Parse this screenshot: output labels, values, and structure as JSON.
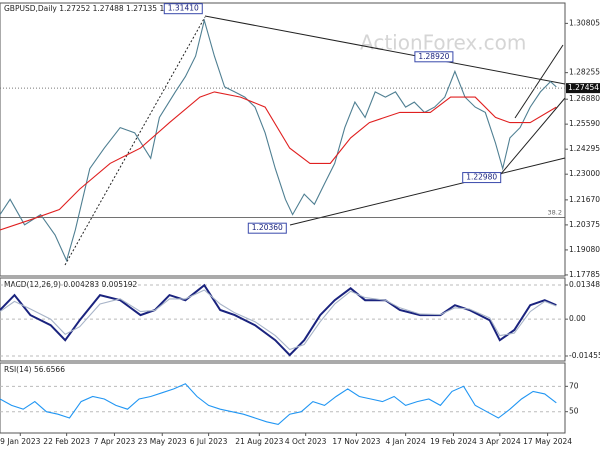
{
  "chart_data": [
    {
      "type": "line",
      "title": "GBPUSD,Daily  1.27252 1.27488 1.27135 1.27454",
      "watermark": "ActionForex.com",
      "xlim": [
        0,
        390
      ],
      "ylim": [
        1.1773,
        1.3186
      ],
      "yticks": [
        {
          "value": 1.30805,
          "label": "1.30805"
        },
        {
          "value": 1.28255,
          "label": "1.28255"
        },
        {
          "value": 1.2688,
          "label": "1.26880"
        },
        {
          "value": 1.2559,
          "label": "1.25590"
        },
        {
          "value": 1.24295,
          "label": "1.24295"
        },
        {
          "value": 1.23,
          "label": "1.23000"
        },
        {
          "value": 1.2167,
          "label": "1.21670"
        },
        {
          "value": 1.20375,
          "label": "1.20375"
        },
        {
          "value": 1.1908,
          "label": "1.19080"
        },
        {
          "value": 1.17785,
          "label": "1.17785"
        }
      ],
      "series": [
        {
          "name": "GBPUSD",
          "color": "#4f7f92",
          "x": [
            0,
            7,
            17,
            28,
            38,
            46,
            52,
            62,
            72,
            83,
            93,
            104,
            110,
            121,
            128,
            135,
            141,
            148,
            155,
            162,
            169,
            176,
            183,
            190,
            197,
            202,
            210,
            217,
            224,
            231,
            238,
            245,
            252,
            259,
            266,
            273,
            280,
            286,
            293,
            300,
            307,
            314,
            321,
            328,
            335,
            342,
            347,
            352,
            359,
            366,
            373,
            380,
            384
          ],
          "values": [
            1.2091,
            1.217,
            1.2038,
            1.2091,
            1.1985,
            1.1853,
            1.2011,
            1.2329,
            1.2435,
            1.2541,
            1.2514,
            1.2382,
            1.2594,
            1.2726,
            1.2805,
            1.2911,
            1.3096,
            1.2911,
            1.2752,
            1.2726,
            1.2699,
            1.2647,
            1.2514,
            1.2329,
            1.217,
            1.2091,
            1.2197,
            1.2144,
            1.225,
            1.2356,
            1.2541,
            1.2673,
            1.2594,
            1.2726,
            1.2699,
            1.2726,
            1.2647,
            1.2673,
            1.262,
            1.2647,
            1.2699,
            1.2832,
            1.2699,
            1.2647,
            1.262,
            1.2461,
            1.2329,
            1.2488,
            1.2541,
            1.2647,
            1.2726,
            1.2779,
            1.2752
          ]
        },
        {
          "name": "MA",
          "color": "#e02020",
          "x": [
            0,
            21,
            41,
            55,
            76,
            97,
            117,
            138,
            148,
            166,
            183,
            200,
            214,
            228,
            242,
            255,
            276,
            297,
            311,
            328,
            342,
            352,
            366,
            384
          ],
          "values": [
            1.2011,
            1.2064,
            1.2117,
            1.2223,
            1.2356,
            1.2435,
            1.2567,
            1.2699,
            1.2726,
            1.2699,
            1.2647,
            1.2435,
            1.2356,
            1.2356,
            1.2488,
            1.2567,
            1.262,
            1.262,
            1.2699,
            1.2699,
            1.2594,
            1.2567,
            1.2567,
            1.2647
          ]
        }
      ],
      "annotations": [
        {
          "label": "1.31410",
          "x": 141,
          "value": 1.3141
        },
        {
          "label": "1.28920",
          "x": 314,
          "value": 1.2892
        },
        {
          "label": "1.22980",
          "x": 347,
          "value": 1.2298
        },
        {
          "label": "1.20360",
          "x": 199,
          "value": 1.2036
        }
      ],
      "level": {
        "label": "38.2",
        "value": 1.2075
      },
      "current": {
        "label": "1.27454",
        "value": 1.27454
      }
    },
    {
      "type": "line",
      "title": "MACD(12,26,9) 0.004283 0.005192",
      "xlim": [
        0,
        390
      ],
      "ylim": [
        -0.016529,
        0.016253
      ],
      "yticks": [
        0.013489,
        {
          "value": 0,
          "label": "0.00"
        },
        -0.014554
      ],
      "series": [
        {
          "name": "MACD",
          "color": "#1a237e",
          "x": [
            0,
            10,
            21,
            35,
            45,
            55,
            69,
            83,
            97,
            107,
            117,
            128,
            141,
            152,
            162,
            176,
            190,
            200,
            210,
            221,
            231,
            242,
            252,
            266,
            276,
            290,
            304,
            314,
            324,
            338,
            345,
            355,
            366,
            376,
            384
          ],
          "values": [
            0.0036,
            0.0095,
            0.0016,
            -0.0024,
            -0.0083,
            -0.0004,
            0.0095,
            0.0075,
            0.0016,
            0.0036,
            0.0095,
            0.0075,
            0.0134,
            0.0036,
            0.0016,
            -0.0024,
            -0.0083,
            -0.0142,
            -0.0083,
            0.0016,
            0.0075,
            0.0122,
            0.0075,
            0.0075,
            0.0036,
            0.0016,
            0.0016,
            0.0055,
            0.0036,
            -0.0004,
            -0.0083,
            -0.0043,
            0.0055,
            0.0075,
            0.0055
          ]
        },
        {
          "name": "Signal",
          "color": "#a8b4c8",
          "x": [
            0,
            10,
            21,
            35,
            45,
            55,
            69,
            83,
            97,
            107,
            117,
            128,
            141,
            152,
            162,
            176,
            190,
            200,
            210,
            221,
            231,
            242,
            252,
            266,
            276,
            290,
            304,
            314,
            324,
            338,
            345,
            355,
            366,
            376,
            384
          ],
          "values": [
            0.003,
            0.007,
            0.004,
            0.0,
            -0.006,
            -0.003,
            0.006,
            0.008,
            0.003,
            0.0035,
            0.008,
            0.008,
            0.0115,
            0.006,
            0.0025,
            -0.001,
            -0.0065,
            -0.012,
            -0.01,
            -0.001,
            0.006,
            0.011,
            0.0085,
            0.0075,
            0.0045,
            0.002,
            0.0018,
            0.0045,
            0.004,
            0.0005,
            -0.0065,
            -0.0055,
            0.003,
            0.007,
            0.0052
          ]
        }
      ]
    },
    {
      "type": "line",
      "title": "RSI(14) 56.6566",
      "xlim": [
        0,
        390
      ],
      "ylim": [
        33.2,
        88.4
      ],
      "yticks": [
        70,
        50
      ],
      "xticks": [
        {
          "value": 14,
          "label": "9 Jan 2023"
        },
        {
          "value": 46,
          "label": "22 Feb 2023"
        },
        {
          "value": 79,
          "label": "7 Apr 2023"
        },
        {
          "value": 112,
          "label": "23 May 2023"
        },
        {
          "value": 144,
          "label": "6 Jul 2023"
        },
        {
          "value": 179,
          "label": "21 Aug 2023"
        },
        {
          "value": 211,
          "label": "4 Oct 2023"
        },
        {
          "value": 246,
          "label": "17 Nov 2023"
        },
        {
          "value": 280,
          "label": "4 Jan 2024"
        },
        {
          "value": 313,
          "label": "19 Feb 2024"
        },
        {
          "value": 345,
          "label": "3 Apr 2024"
        },
        {
          "value": 378,
          "label": "17 May 2024"
        }
      ],
      "series": [
        {
          "name": "RSI",
          "color": "#2196f3",
          "x": [
            0,
            8,
            16,
            24,
            32,
            40,
            48,
            56,
            64,
            72,
            80,
            88,
            96,
            104,
            112,
            120,
            128,
            136,
            144,
            152,
            160,
            168,
            176,
            184,
            192,
            200,
            208,
            216,
            224,
            232,
            240,
            248,
            256,
            264,
            272,
            280,
            288,
            296,
            304,
            312,
            320,
            328,
            336,
            344,
            352,
            360,
            368,
            376,
            384
          ],
          "values": [
            60,
            55,
            52,
            58,
            50,
            48,
            45,
            58,
            62,
            60,
            55,
            52,
            60,
            62,
            65,
            68,
            72,
            62,
            55,
            52,
            50,
            48,
            45,
            42,
            40,
            48,
            50,
            58,
            55,
            62,
            68,
            62,
            60,
            58,
            62,
            55,
            58,
            60,
            55,
            66,
            70,
            55,
            50,
            45,
            52,
            60,
            66,
            64,
            57
          ]
        }
      ]
    }
  ]
}
